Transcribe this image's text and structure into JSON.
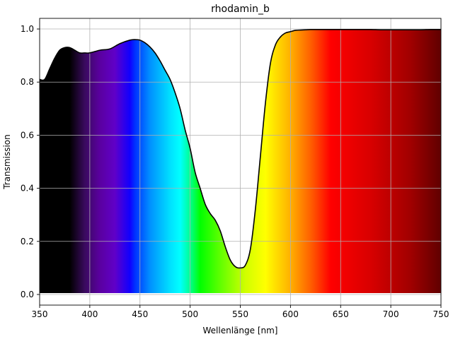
{
  "chart_data": {
    "type": "area",
    "title": "rhodamin_b",
    "xlabel": "Wellenlänge [nm]",
    "ylabel": "Transmission",
    "xlim": [
      350,
      750
    ],
    "ylim": [
      -0.04,
      1.04
    ],
    "xticks": [
      "350",
      "400",
      "450",
      "500",
      "550",
      "600",
      "650",
      "700",
      "750"
    ],
    "yticks": [
      "0.0",
      "0.2",
      "0.4",
      "0.6",
      "0.8",
      "1.0"
    ],
    "grid": true,
    "fill": "visible-spectrum-gradient",
    "line_color": "#000000",
    "x": [
      350,
      355,
      360,
      365,
      370,
      375,
      380,
      385,
      390,
      395,
      400,
      410,
      420,
      430,
      440,
      445,
      450,
      455,
      460,
      465,
      470,
      475,
      480,
      485,
      490,
      495,
      500,
      505,
      510,
      515,
      520,
      525,
      530,
      535,
      540,
      545,
      550,
      555,
      560,
      565,
      570,
      575,
      580,
      585,
      590,
      595,
      600,
      605,
      610,
      615,
      620,
      630,
      640,
      650,
      660,
      670,
      680,
      690,
      700,
      710,
      720,
      730,
      740,
      750
    ],
    "y": [
      0.81,
      0.81,
      0.85,
      0.89,
      0.92,
      0.93,
      0.93,
      0.92,
      0.91,
      0.91,
      0.91,
      0.92,
      0.925,
      0.945,
      0.958,
      0.96,
      0.958,
      0.948,
      0.932,
      0.91,
      0.88,
      0.845,
      0.81,
      0.76,
      0.7,
      0.62,
      0.55,
      0.46,
      0.4,
      0.34,
      0.305,
      0.28,
      0.24,
      0.18,
      0.13,
      0.105,
      0.1,
      0.11,
      0.17,
      0.32,
      0.52,
      0.72,
      0.87,
      0.94,
      0.97,
      0.985,
      0.99,
      0.995,
      0.996,
      0.997,
      0.998,
      0.998,
      0.998,
      0.998,
      0.998,
      0.998,
      0.998,
      0.997,
      0.997,
      0.997,
      0.997,
      0.997,
      0.998,
      0.998
    ]
  }
}
